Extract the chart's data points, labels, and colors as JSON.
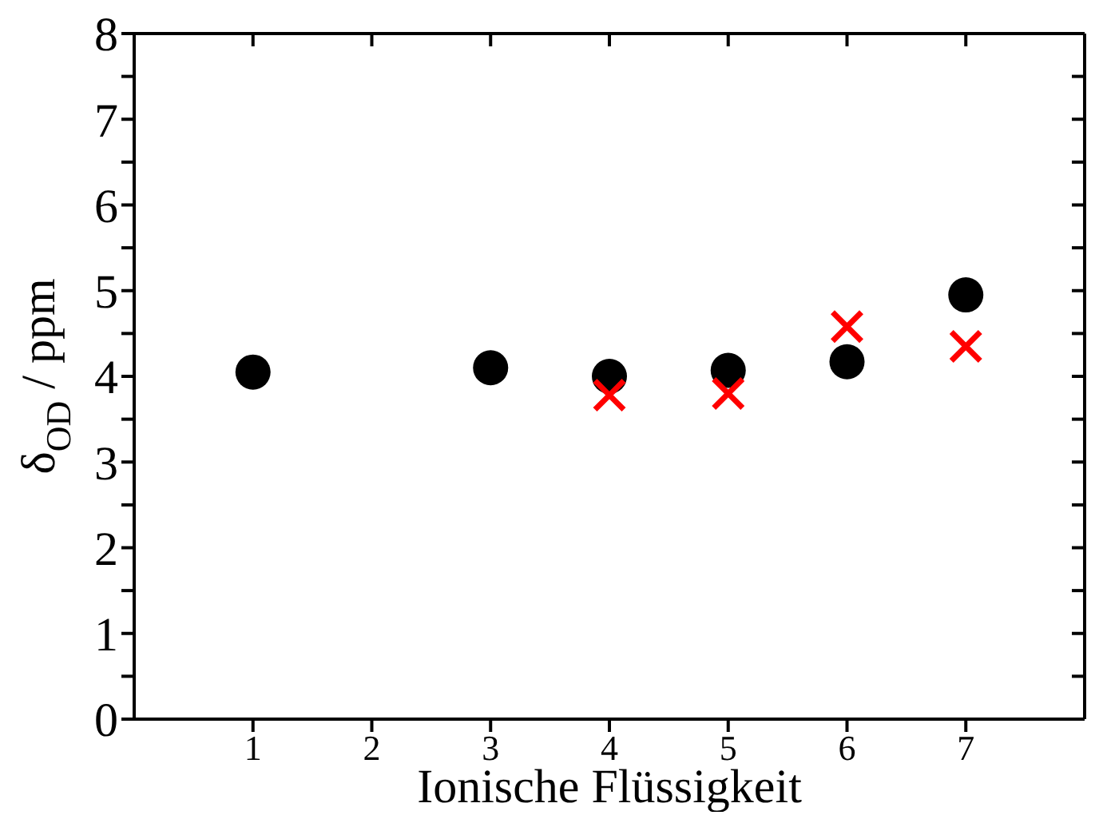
{
  "chart_data": {
    "type": "scatter",
    "xlabel": "Ionische Flüssigkeit",
    "ylabel": "δ$_{OD}$ / ppm",
    "xlim": [
      0,
      8
    ],
    "xticks": [
      1,
      2,
      3,
      4,
      5,
      6,
      7
    ],
    "ylim": [
      0,
      8
    ],
    "yticks": [
      0,
      {
        "value": 0.5,
        "label": null
      },
      1,
      {
        "value": 1.5,
        "label": null
      },
      2,
      {
        "value": 2.5,
        "label": null
      },
      3,
      {
        "value": 3.5,
        "label": null
      },
      4,
      {
        "value": 4.5,
        "label": null
      },
      5,
      {
        "value": 5.5,
        "label": null
      },
      6,
      {
        "value": 6.5,
        "label": null
      },
      7,
      {
        "value": 7.5,
        "label": null
      },
      8
    ],
    "legend": false,
    "series": [
      {
        "color": "#000000",
        "marker": "circle",
        "x": [
          1,
          3,
          4,
          5,
          6,
          7
        ],
        "values": [
          4.05,
          4.1,
          4.0,
          4.07,
          4.17,
          4.95
        ]
      },
      {
        "color": "#ff0000",
        "marker": "cross",
        "x": [
          4,
          5,
          6,
          7
        ],
        "values": [
          3.78,
          3.8,
          4.58,
          4.35
        ]
      }
    ]
  }
}
